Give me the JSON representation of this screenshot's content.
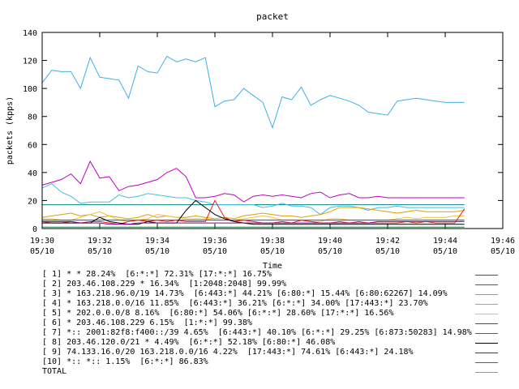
{
  "chart_data": {
    "type": "line",
    "title": "packet",
    "xlabel": "Time",
    "ylabel": "packets (kpps)",
    "ylim": [
      0,
      140
    ],
    "y_ticks": [
      0,
      20,
      40,
      60,
      80,
      100,
      120,
      140
    ],
    "x_ticks": [
      {
        "t": 0,
        "line1": "19:30",
        "line2": "05/10"
      },
      {
        "t": 2,
        "line1": "19:32",
        "line2": "05/10"
      },
      {
        "t": 4,
        "line1": "19:34",
        "line2": "05/10"
      },
      {
        "t": 6,
        "line1": "19:36",
        "line2": "05/10"
      },
      {
        "t": 8,
        "line1": "19:38",
        "line2": "05/10"
      },
      {
        "t": 10,
        "line1": "19:40",
        "line2": "05/10"
      },
      {
        "t": 12,
        "line1": "19:42",
        "line2": "05/10"
      },
      {
        "t": 14,
        "line1": "19:44",
        "line2": "05/10"
      },
      {
        "t": 16,
        "line1": "19:46",
        "line2": "05/10"
      }
    ],
    "xlim": [
      0,
      16
    ],
    "x": [
      0,
      0.333,
      0.667,
      1,
      1.333,
      1.667,
      2,
      2.333,
      2.667,
      3,
      3.333,
      3.667,
      4,
      4.333,
      4.667,
      5,
      5.333,
      5.667,
      6,
      6.333,
      6.667,
      7,
      7.333,
      7.667,
      8,
      8.333,
      8.667,
      9,
      9.333,
      9.667,
      10,
      10.333,
      10.667,
      11,
      11.333,
      11.667,
      12,
      12.333,
      12.667,
      13,
      13.333,
      13.667,
      14,
      14.333,
      14.667
    ],
    "series": [
      {
        "label": "[ 1] * * 28.24%  [6:*:*] 72.31% [17:*:*] 16.75%",
        "color": "#c000c0",
        "values": [
          31,
          33,
          35,
          39,
          32,
          48,
          36,
          37,
          27,
          30,
          31,
          33,
          35,
          40,
          43,
          37,
          22,
          22,
          23,
          25,
          24,
          19,
          23,
          24,
          23,
          24,
          23,
          22,
          25,
          26,
          22,
          24,
          25,
          22,
          22,
          23,
          22,
          22,
          22,
          22,
          22,
          22,
          22,
          22,
          22
        ]
      },
      {
        "label": "[ 2] 203.46.108.229 * 16.34%  [1:2048:2048] 99.99%",
        "color": "#008080",
        "values": [
          17,
          17,
          17,
          17,
          17,
          17,
          17,
          17,
          17,
          17,
          17,
          17,
          17,
          17,
          17,
          17,
          17,
          17,
          17,
          17,
          17,
          17,
          17,
          17,
          17,
          17,
          17,
          17,
          17,
          17,
          17,
          17,
          17,
          17,
          17,
          17,
          17,
          17,
          17,
          17,
          17,
          17,
          17,
          17,
          17
        ]
      },
      {
        "label": "[ 3] * 163.218.96.0/19 14.73%  [6:443:*] 44.21% [6:80:*] 15.44% [6:80:62267] 14.09%",
        "color": "#40c0e0",
        "values": [
          29,
          32,
          26,
          23,
          18,
          19,
          19,
          19,
          24,
          22,
          23,
          25,
          24,
          23,
          22,
          22,
          20,
          19,
          17,
          17,
          17,
          17,
          17,
          15,
          16,
          18,
          16,
          16,
          15,
          10,
          15,
          16,
          16,
          15,
          13,
          15,
          15,
          16,
          15,
          15,
          15,
          15,
          15,
          15,
          15
        ]
      },
      {
        "label": "[ 4] * 163.218.0.0/16 11.85%  [6:443:*] 36.21% [6:*:*] 34.00% [17:443:*] 23.70%",
        "color": "#e0a000",
        "values": [
          8,
          9,
          10,
          11,
          9,
          10,
          8,
          9,
          8,
          7,
          8,
          10,
          8,
          9,
          8,
          8,
          9,
          8,
          7,
          8,
          7,
          9,
          10,
          11,
          10,
          9,
          9,
          8,
          9,
          10,
          12,
          15,
          15,
          15,
          14,
          13,
          12,
          11,
          12,
          13,
          12,
          12,
          12,
          12,
          13
        ]
      },
      {
        "label": "[ 5] * 202.0.0.0/8 8.16%  [6:80:*] 54.06% [6:*:*] 28.60% [17:*:*] 16.56%",
        "color": "#f0c040",
        "values": [
          7,
          7,
          6,
          6,
          8,
          10,
          12,
          9,
          6,
          5,
          6,
          7,
          10,
          9,
          8,
          7,
          7,
          7,
          6,
          6,
          6,
          7,
          8,
          9,
          8,
          6,
          6,
          6,
          5,
          5,
          7,
          7,
          6,
          6,
          6,
          6,
          6,
          7,
          8,
          7,
          8,
          8,
          8,
          9,
          9
        ]
      },
      {
        "label": "[ 6] * 203.46.108.229 6.15%  [1:*:*] 99.38%",
        "color": "#0060c0",
        "values": [
          6,
          6,
          6,
          6,
          6,
          6,
          6,
          6,
          6,
          6,
          6,
          6,
          6,
          6,
          6,
          6,
          6,
          6,
          6,
          6,
          6,
          6,
          6,
          6,
          6,
          6,
          6,
          6,
          6,
          6,
          6,
          6,
          6,
          6,
          6,
          6,
          6,
          6,
          6,
          6,
          6,
          6,
          6,
          6,
          6
        ]
      },
      {
        "label": "[ 7] *:: 2001:82f8:f400::/39 4.65%  [6:443:*] 40.10% [6:*:*] 29.25% [6:873:50283] 14.98%",
        "color": "#e02020",
        "values": [
          5,
          4,
          4,
          5,
          4,
          5,
          5,
          4,
          3,
          5,
          6,
          5,
          6,
          5,
          6,
          5,
          5,
          5,
          20,
          8,
          5,
          6,
          5,
          4,
          4,
          5,
          4,
          6,
          5,
          4,
          4,
          5,
          4,
          5,
          4,
          4,
          4,
          4,
          5,
          4,
          5,
          4,
          4,
          4,
          14
        ]
      },
      {
        "label": "[ 8] 203.46.120.0/21 * 4.49%  [6:*:*] 52.18% [6:80:*] 46.08%",
        "color": "#000000",
        "values": [
          4,
          4,
          4,
          4,
          4,
          4,
          8,
          5,
          4,
          3,
          3,
          5,
          4,
          4,
          4,
          13,
          20,
          15,
          10,
          7,
          5,
          4,
          3,
          3,
          3,
          3,
          3,
          3,
          3,
          3,
          3,
          3,
          3,
          3,
          3,
          3,
          3,
          3,
          3,
          3,
          3,
          3,
          3,
          3,
          3
        ]
      },
      {
        "label": "[ 9] 74.133.16.0/20 163.218.0.0/16 4.22%  [17:443:*] 74.61% [6:443:*] 24.18%",
        "color": "#8000a0",
        "values": [
          5,
          5,
          5,
          5,
          4,
          4,
          4,
          3,
          3,
          3,
          4,
          4,
          4,
          4,
          4,
          4,
          4,
          4,
          4,
          4,
          4,
          4,
          4,
          4,
          4,
          4,
          4,
          4,
          4,
          4,
          4,
          4,
          4,
          4,
          4,
          5,
          5,
          5,
          5,
          5,
          5,
          5,
          5,
          5,
          5
        ]
      },
      {
        "label": "[10] *:: *:: 1.15%  [6:*:*] 86.83%",
        "color": "#208050",
        "values": [
          1,
          1,
          1,
          1,
          1,
          1,
          1,
          1,
          1,
          1,
          1,
          1,
          1,
          1,
          1,
          1,
          1,
          1,
          1,
          1,
          1,
          1,
          1,
          1,
          1,
          1,
          1,
          1,
          1,
          1,
          1,
          1,
          1,
          1,
          1,
          1,
          1,
          1,
          1,
          1,
          1,
          1,
          1,
          1,
          1
        ]
      },
      {
        "label": "TOTAL",
        "color": "#40b0e0",
        "values": [
          104,
          113,
          112,
          112,
          100,
          122,
          108,
          107,
          106,
          93,
          116,
          112,
          111,
          123,
          119,
          121,
          119,
          122,
          87,
          91,
          92,
          100,
          95,
          90,
          72,
          94,
          92,
          101,
          88,
          92,
          95,
          93,
          91,
          88,
          83,
          82,
          81,
          91,
          92,
          93,
          92,
          91,
          90,
          90,
          90
        ]
      }
    ]
  }
}
